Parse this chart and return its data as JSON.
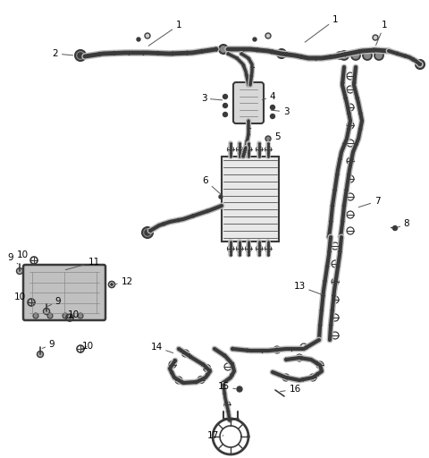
{
  "background_color": "#ffffff",
  "line_color": "#3a3a3a",
  "label_color": "#000000",
  "label_fontsize": 7.5,
  "figsize": [
    4.8,
    5.12
  ],
  "dpi": 100,
  "border_color": "#cccccc"
}
